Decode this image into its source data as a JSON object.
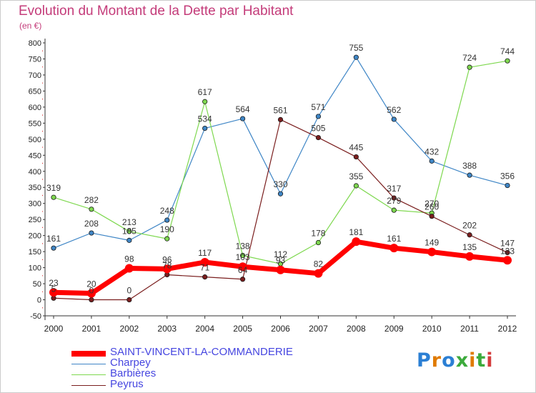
{
  "title": "Evolution du Montant de la Dette par Habitant",
  "unit_label": "(en €)",
  "logo_text": "Proxiti",
  "chart_data": {
    "type": "line",
    "title": "Evolution du Montant de la Dette par Habitant",
    "subtitle": "(en €)",
    "xlabel": "",
    "ylabel": "",
    "x": [
      "2000",
      "2001",
      "2002",
      "2003",
      "2004",
      "2005",
      "2006",
      "2007",
      "2008",
      "2009",
      "2010",
      "2011",
      "2012"
    ],
    "ylim": [
      -50,
      800
    ],
    "yticks": [
      -50,
      0,
      50,
      100,
      150,
      200,
      250,
      300,
      350,
      400,
      450,
      500,
      550,
      600,
      650,
      700,
      750,
      800
    ],
    "grid": false,
    "legend_position": "bottom-left",
    "series": [
      {
        "name": "SAINT-VINCENT-LA-COMMANDERIE",
        "color": "#ff0000",
        "values": [
          23,
          20,
          98,
          96,
          117,
          103,
          93,
          82,
          181,
          161,
          149,
          135,
          123
        ]
      },
      {
        "name": "Charpey",
        "color": "#3f86c6",
        "values": [
          161,
          208,
          185,
          248,
          534,
          564,
          330,
          571,
          755,
          562,
          432,
          388,
          356
        ]
      },
      {
        "name": "Barbières",
        "color": "#7ed84f",
        "values": [
          319,
          282,
          213,
          190,
          617,
          138,
          112,
          178,
          355,
          279,
          270,
          724,
          744
        ]
      },
      {
        "name": "Peyrus",
        "color": "#7a1e1e",
        "values": [
          5,
          0,
          0,
          78,
          71,
          64,
          561,
          505,
          445,
          317,
          260,
          202,
          147
        ]
      }
    ]
  }
}
